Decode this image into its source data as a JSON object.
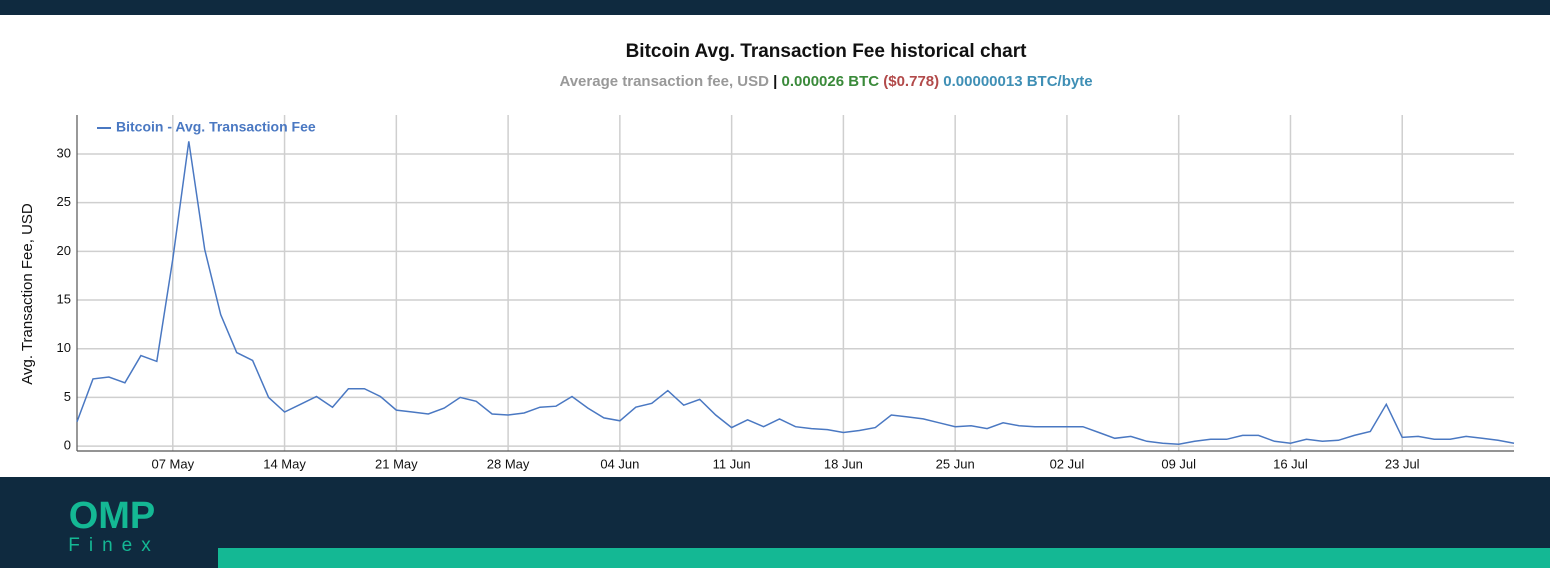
{
  "chart_data": {
    "type": "line",
    "title": "Bitcoin Avg. Transaction Fee historical chart",
    "subtitle": {
      "metric": "Average transaction fee, USD",
      "separator": "|",
      "btc": "0.000026 BTC",
      "usd": "($0.778)",
      "per_byte": "0.00000013 BTC/byte"
    },
    "ylabel": "Avg. Transaction Fee, USD",
    "categories": [
      null,
      null,
      null,
      null,
      null,
      null,
      "07 May",
      null,
      null,
      null,
      null,
      null,
      null,
      "14 May",
      null,
      null,
      null,
      null,
      null,
      null,
      "21 May",
      null,
      null,
      null,
      null,
      null,
      null,
      "28 May",
      null,
      null,
      null,
      null,
      null,
      null,
      "04 Jun",
      null,
      null,
      null,
      null,
      null,
      null,
      "11 Jun",
      null,
      null,
      null,
      null,
      null,
      null,
      "18 Jun",
      null,
      null,
      null,
      null,
      null,
      null,
      "25 Jun",
      null,
      null,
      null,
      null,
      null,
      null,
      "02 Jul",
      null,
      null,
      null,
      null,
      null,
      null,
      "09 Jul",
      null,
      null,
      null,
      null,
      null,
      null,
      "16 Jul",
      null,
      null,
      null,
      null,
      null,
      null,
      "23 Jul",
      null,
      null,
      null,
      null,
      null,
      null,
      null
    ],
    "series": [
      {
        "name": "Bitcoin - Avg. Transaction Fee",
        "color": "#4a78c2",
        "values": [
          2.5,
          6.9,
          7.1,
          6.5,
          9.3,
          8.7,
          19.2,
          31.3,
          20.2,
          13.5,
          9.6,
          8.8,
          5.0,
          3.5,
          4.3,
          5.1,
          4.0,
          5.9,
          5.9,
          5.1,
          3.7,
          3.5,
          3.3,
          3.9,
          5.0,
          4.6,
          3.3,
          3.2,
          3.4,
          4.0,
          4.1,
          5.1,
          3.9,
          2.9,
          2.6,
          4.0,
          4.4,
          5.7,
          4.2,
          4.8,
          3.2,
          1.9,
          2.7,
          2.0,
          2.8,
          2.0,
          1.8,
          1.7,
          1.4,
          1.6,
          1.9,
          3.2,
          3.0,
          2.8,
          2.4,
          2.0,
          2.1,
          1.8,
          2.4,
          2.1,
          2.0,
          2.0,
          2.0,
          2.0,
          1.4,
          0.8,
          1.0,
          0.5,
          0.3,
          0.2,
          0.5,
          0.7,
          0.7,
          1.1,
          1.1,
          0.5,
          0.3,
          0.7,
          0.5,
          0.6,
          1.1,
          1.5,
          4.3,
          0.9,
          1.0,
          0.7,
          0.7,
          1.0,
          0.8,
          0.6,
          0.3
        ]
      }
    ],
    "ylim": [
      -0.5,
      34
    ],
    "yticks": [
      0,
      5,
      10,
      15,
      20,
      25,
      30
    ],
    "grid": true,
    "legend": "top-left"
  },
  "brand": {
    "logo": "OMP",
    "name": "Finex"
  }
}
